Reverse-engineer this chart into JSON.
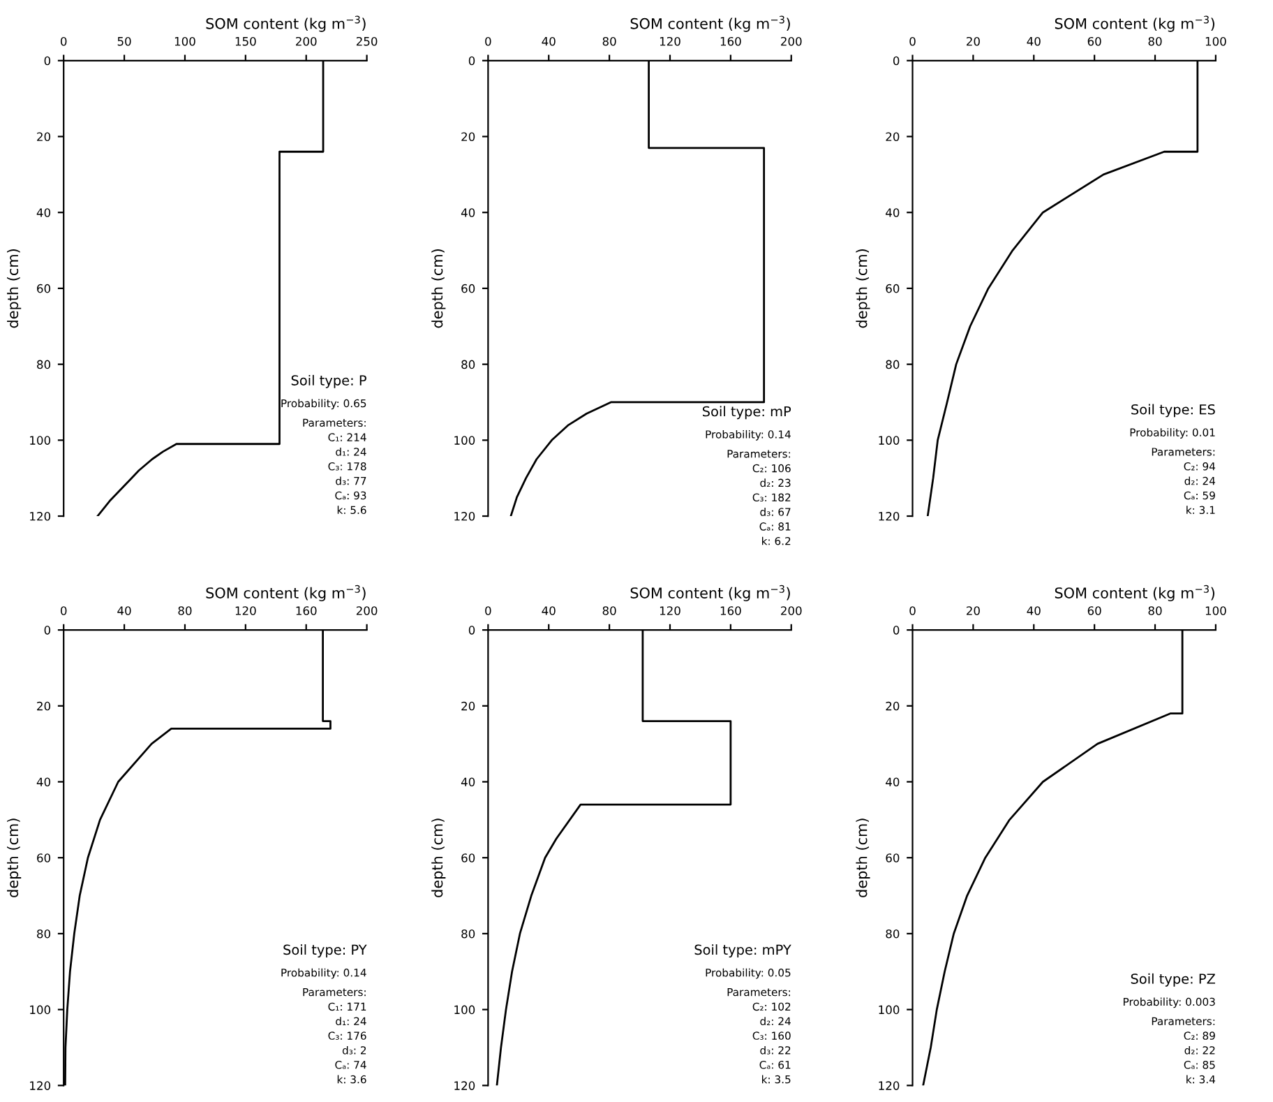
{
  "chart_data": [
    {
      "type": "line",
      "xlabel": "SOM content (kg m$^{−3}$)",
      "ylabel": "depth (cm)",
      "xlim": [
        0,
        250
      ],
      "xticks": [
        0,
        50,
        100,
        150,
        200,
        250
      ],
      "ylim": [
        120,
        0
      ],
      "yticks": [
        0,
        20,
        40,
        60,
        80,
        100,
        120
      ],
      "grid": false,
      "series": [
        {
          "color": "#000000",
          "x": [
            214,
            214,
            178,
            178,
            93,
            82,
            73,
            62,
            56,
            47,
            38,
            28
          ],
          "values": [
            0,
            24,
            24,
            101,
            101,
            103,
            105,
            108,
            110,
            113,
            116,
            120
          ]
        }
      ],
      "annotations": [
        "Soil type: P",
        "Probability: 0.65",
        "Parameters:",
        "C₁: 214",
        "d₁: 24",
        "C₃: 178",
        "d₃: 77",
        "Cₐ: 93",
        "k: 5.6"
      ]
    },
    {
      "type": "line",
      "xlabel": "SOM content (kg m$^{−3}$)",
      "ylabel": "depth (cm)",
      "xlim": [
        0,
        200
      ],
      "xticks": [
        0,
        40,
        80,
        120,
        160,
        200
      ],
      "ylim": [
        120,
        0
      ],
      "yticks": [
        0,
        20,
        40,
        60,
        80,
        100,
        120
      ],
      "grid": false,
      "series": [
        {
          "color": "#000000",
          "x": [
            106,
            106,
            182,
            182,
            81,
            65,
            53,
            42,
            32,
            25,
            19,
            15
          ],
          "values": [
            0,
            23,
            23,
            90,
            90,
            93,
            96,
            100,
            105,
            110,
            115,
            120
          ]
        }
      ],
      "annotations": [
        "Soil type: mP",
        "Probability: 0.14",
        "Parameters:",
        "C₂: 106",
        "d₂: 23",
        "C₃: 182",
        "d₃: 67",
        "Cₐ: 81",
        "k: 6.2"
      ]
    },
    {
      "type": "line",
      "xlabel": "SOM content (kg m$^{−3}$)",
      "ylabel": "depth (cm)",
      "xlim": [
        0,
        100
      ],
      "xticks": [
        0,
        20,
        40,
        60,
        80,
        100
      ],
      "ylim": [
        120,
        0
      ],
      "yticks": [
        0,
        20,
        40,
        60,
        80,
        100,
        120
      ],
      "grid": false,
      "series": [
        {
          "color": "#000000",
          "x": [
            94,
            94,
            83,
            63,
            43,
            33,
            25,
            19,
            14.4,
            11.4,
            8.3,
            6.8,
            5
          ],
          "values": [
            0,
            24,
            24,
            30,
            40,
            50,
            60,
            70,
            80,
            90,
            100,
            110,
            120
          ]
        }
      ],
      "annotations": [
        "Soil type: ES",
        "Probability: 0.01",
        "Parameters:",
        "C₂: 94",
        "d₂: 24",
        "Cₐ: 59",
        "k: 3.1"
      ]
    },
    {
      "type": "line",
      "xlabel": "SOM content (kg m$^{−3}$)",
      "ylabel": "depth (cm)",
      "xlim": [
        0,
        200
      ],
      "xticks": [
        0,
        40,
        80,
        120,
        160,
        200
      ],
      "ylim": [
        120,
        0
      ],
      "yticks": [
        0,
        20,
        40,
        60,
        80,
        100,
        120
      ],
      "grid": false,
      "series": [
        {
          "color": "#000000",
          "x": [
            171,
            171,
            176,
            176,
            71,
            58,
            36,
            24,
            16,
            10.6,
            7,
            4.2,
            2.4,
            1.2,
            1
          ],
          "values": [
            0,
            24,
            24,
            26,
            26,
            30,
            40,
            50,
            60,
            70,
            80,
            90,
            100,
            110,
            120
          ]
        }
      ],
      "annotations": [
        "Soil type: PY",
        "Probability: 0.14",
        "Parameters:",
        "C₁: 171",
        "d₁: 24",
        "C₃: 176",
        "d₃: 2",
        "Cₐ: 74",
        "k: 3.6"
      ]
    },
    {
      "type": "line",
      "xlabel": "SOM content (kg m$^{−3}$)",
      "ylabel": "depth (cm)",
      "xlim": [
        0,
        200
      ],
      "xticks": [
        0,
        40,
        80,
        120,
        160,
        200
      ],
      "ylim": [
        120,
        0
      ],
      "yticks": [
        0,
        20,
        40,
        60,
        80,
        100,
        120
      ],
      "grid": false,
      "series": [
        {
          "color": "#000000",
          "x": [
            102,
            102,
            160,
            160,
            61,
            45,
            37.6,
            28.5,
            21,
            15.8,
            11.8,
            8.5,
            5.8
          ],
          "values": [
            0,
            24,
            24,
            46,
            46,
            55,
            60,
            70,
            80,
            90,
            100,
            110,
            120
          ]
        }
      ],
      "annotations": [
        "Soil type: mPY",
        "Probability: 0.05",
        "Parameters:",
        "C₂: 102",
        "d₂: 24",
        "C₃: 160",
        "d₃: 22",
        "Cₐ: 61",
        "k: 3.5"
      ]
    },
    {
      "type": "line",
      "xlabel": "SOM content (kg m$^{−3}$)",
      "ylabel": "depth (cm)",
      "xlim": [
        0,
        100
      ],
      "xticks": [
        0,
        20,
        40,
        60,
        80,
        100
      ],
      "ylim": [
        120,
        0
      ],
      "yticks": [
        0,
        20,
        40,
        60,
        80,
        100,
        120
      ],
      "grid": false,
      "series": [
        {
          "color": "#000000",
          "x": [
            89,
            89,
            85,
            61,
            43,
            32,
            24,
            18,
            13.6,
            10.6,
            8,
            6,
            3.5
          ],
          "values": [
            0,
            22,
            22,
            30,
            40,
            50,
            60,
            70,
            80,
            90,
            100,
            110,
            120
          ]
        }
      ],
      "annotations": [
        "Soil type: PZ",
        "Probability: 0.003",
        "Parameters:",
        "C₂: 89",
        "d₂: 22",
        "Cₐ: 85",
        "k: 3.4"
      ]
    }
  ]
}
